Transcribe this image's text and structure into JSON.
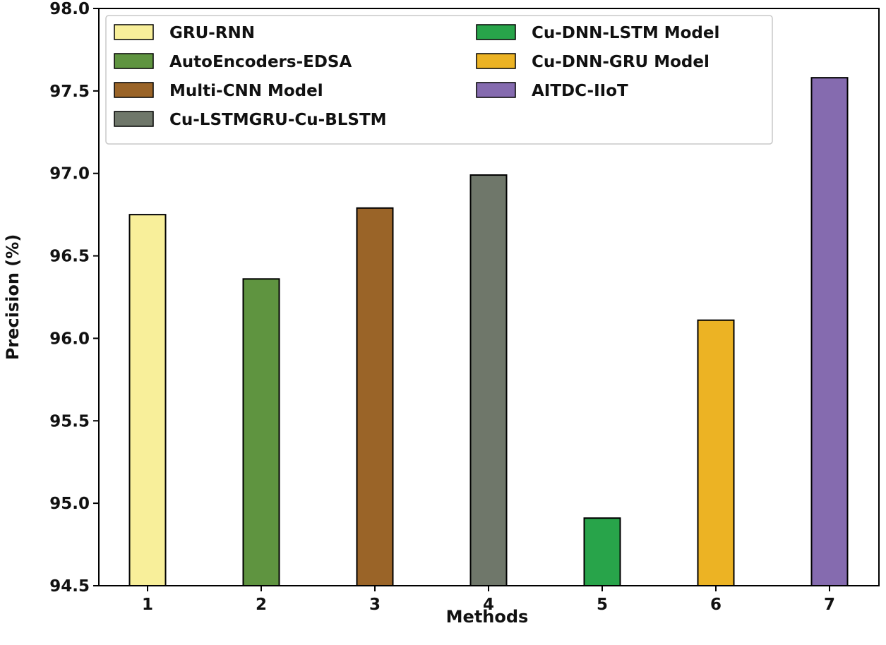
{
  "chart_data": {
    "type": "bar",
    "title": "",
    "xlabel": "Methods",
    "ylabel": "Precision (%)",
    "categories": [
      "1",
      "2",
      "3",
      "4",
      "5",
      "6",
      "7"
    ],
    "values": [
      96.75,
      96.36,
      96.79,
      96.99,
      94.91,
      96.11,
      97.58
    ],
    "series_names": [
      "GRU-RNN",
      "AutoEncoders-EDSA",
      "Multi-CNN Model",
      "Cu-LSTMGRU-Cu-BLSTM",
      "Cu-DNN-LSTM Model",
      "Cu-DNN-GRU Model",
      "AITDC-IIoT"
    ],
    "colors": [
      "#f8ef9a",
      "#5f9440",
      "#9a6428",
      "#6f776a",
      "#28a44a",
      "#ecb324",
      "#856baf"
    ],
    "ylim": [
      94.5,
      98.0
    ],
    "yticks": [
      "94.5",
      "95.0",
      "95.5",
      "96.0",
      "96.5",
      "97.0",
      "97.5",
      "98.0"
    ],
    "grid": false,
    "legend_position": "top"
  }
}
